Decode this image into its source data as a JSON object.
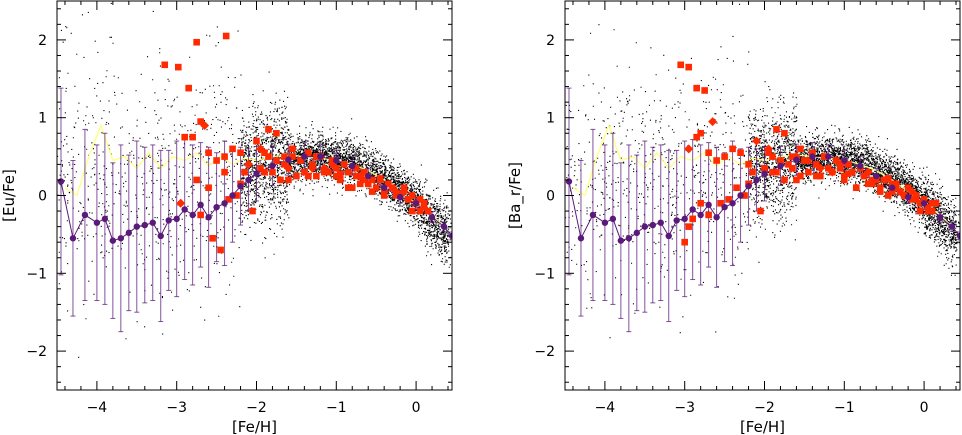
{
  "chart_data": [
    {
      "type": "scatter",
      "xlabel": "[Fe/H]",
      "ylabel": "[Eu/Fe]",
      "xlim": [
        -4.5,
        0.45
      ],
      "ylim": [
        -2.5,
        2.5
      ],
      "xticks": [
        -4,
        -3,
        -2,
        -1,
        0
      ],
      "yticks": [
        -2,
        -1,
        0,
        1,
        2
      ],
      "grid": false,
      "legend": "none",
      "model_cloud": {
        "note_color": "#000000",
        "n_points": 5200,
        "ridge": [
          [
            -4.5,
            0.2
          ],
          [
            -3.0,
            0.25
          ],
          [
            -2.0,
            0.4
          ],
          [
            -1.3,
            0.5
          ],
          [
            -0.8,
            0.45
          ],
          [
            -0.3,
            0.15
          ],
          [
            0.0,
            -0.1
          ],
          [
            0.35,
            -0.45
          ]
        ]
      },
      "mean_curve": {
        "color": "#5a1a7a",
        "x": [
          -4.45,
          -4.3,
          -4.15,
          -4.0,
          -3.9,
          -3.8,
          -3.7,
          -3.6,
          -3.5,
          -3.4,
          -3.3,
          -3.2,
          -3.1,
          -3.0,
          -2.9,
          -2.8,
          -2.7,
          -2.6,
          -2.5,
          -2.4,
          -2.3,
          -2.2,
          -2.1,
          -2.0,
          -1.8,
          -1.6,
          -1.4,
          -1.2,
          -1.0,
          -0.8,
          -0.6,
          -0.4,
          -0.2,
          0.0,
          0.2,
          0.35,
          0.45
        ],
        "y": [
          0.18,
          -0.55,
          -0.25,
          -0.35,
          -0.3,
          -0.58,
          -0.55,
          -0.48,
          -0.4,
          -0.38,
          -0.35,
          -0.52,
          -0.32,
          -0.3,
          -0.18,
          -0.25,
          -0.12,
          -0.28,
          -0.15,
          -0.1,
          0.0,
          0.12,
          0.2,
          0.28,
          0.38,
          0.46,
          0.5,
          0.5,
          0.45,
          0.38,
          0.25,
          0.1,
          -0.02,
          -0.1,
          -0.28,
          -0.4,
          -0.52
        ],
        "err": [
          1.2,
          1.0,
          1.1,
          1.0,
          1.1,
          1.0,
          1.2,
          1.0,
          1.1,
          1.0,
          1.0,
          1.1,
          0.9,
          1.0,
          0.9,
          0.9,
          0.8,
          0.9,
          0.7,
          0.8,
          0.6,
          0.5,
          0.4,
          0.35,
          0.25,
          0.2,
          0.18,
          0.15,
          0.13,
          0.12,
          0.1,
          0.08,
          0.08,
          0.08,
          0.07,
          0.06,
          0.05
        ]
      },
      "median_curve": {
        "color": "#ffff80",
        "x": [
          -4.4,
          -4.25,
          -4.1,
          -3.95,
          -3.8,
          -3.65,
          -3.5,
          -3.35,
          -3.2,
          -3.05,
          -2.9,
          -2.75,
          -2.6,
          -2.45,
          -2.3,
          -2.15,
          -2.0,
          -1.8,
          -1.6,
          -1.4,
          -1.2,
          -1.0,
          -0.8,
          -0.6,
          -0.4,
          -0.2,
          0.0,
          0.2,
          0.35
        ],
        "y": [
          0.1,
          0.0,
          0.5,
          0.9,
          0.45,
          0.5,
          0.35,
          0.55,
          0.35,
          0.5,
          0.45,
          0.55,
          0.38,
          0.5,
          0.4,
          0.48,
          0.45,
          0.5,
          0.52,
          0.5,
          0.48,
          0.45,
          0.4,
          0.32,
          0.2,
          0.05,
          -0.1,
          -0.25,
          -0.4
        ]
      },
      "observations": {
        "color": "#ff2a00",
        "x": [
          -3.15,
          -2.98,
          -2.85,
          -2.75,
          -2.65,
          -2.38,
          -2.8,
          -2.7,
          -2.6,
          -2.5,
          -2.4,
          -2.3,
          -2.2,
          -2.1,
          -2.0,
          -1.95,
          -1.9,
          -1.85,
          -1.8,
          -1.75,
          -1.7,
          -1.65,
          -1.6,
          -1.55,
          -1.5,
          -1.45,
          -1.4,
          -1.35,
          -1.3,
          -1.25,
          -1.2,
          -1.15,
          -1.1,
          -1.05,
          -1.0,
          -0.95,
          -0.9,
          -0.85,
          -0.8,
          -0.75,
          -0.7,
          -0.65,
          -0.6,
          -0.55,
          -0.5,
          -0.45,
          -0.4,
          -0.35,
          -0.3,
          -0.25,
          -0.2,
          -0.15,
          -0.1,
          -0.05,
          0.0,
          0.05,
          0.1,
          0.15,
          -2.95,
          -2.9,
          -2.7,
          -2.55,
          -2.45,
          -2.35,
          -2.25,
          -2.15,
          -2.05,
          -1.95,
          -1.85,
          -1.75,
          -1.65,
          -1.55,
          -1.45,
          -1.35,
          -1.25,
          -1.15,
          -1.05,
          -0.95,
          -0.85,
          -0.75,
          -0.65,
          -0.55,
          -0.45,
          -0.35,
          -0.25,
          -0.15,
          -0.05,
          0.05,
          -2.4,
          -2.6,
          -2.75,
          -2.2,
          -1.9,
          -1.6,
          -1.3,
          -1.0,
          -0.7,
          -0.4,
          -0.1,
          0.1
        ],
        "y": [
          1.68,
          1.65,
          1.38,
          1.97,
          0.9,
          2.05,
          0.75,
          0.95,
          0.55,
          0.45,
          0.5,
          0.6,
          0.55,
          0.4,
          0.7,
          0.35,
          0.55,
          0.5,
          0.3,
          0.45,
          0.2,
          0.4,
          0.35,
          0.5,
          0.25,
          0.45,
          0.3,
          0.55,
          0.4,
          0.25,
          0.5,
          0.35,
          0.3,
          0.45,
          0.35,
          0.2,
          0.4,
          0.3,
          0.1,
          0.35,
          0.25,
          0.3,
          0.15,
          0.2,
          0.1,
          0.2,
          0.0,
          0.15,
          0.1,
          0.05,
          0.0,
          0.1,
          -0.05,
          0.0,
          -0.1,
          -0.05,
          -0.15,
          -0.2,
          -0.1,
          0.75,
          -0.25,
          -0.55,
          -0.7,
          -0.05,
          0.0,
          0.3,
          -0.2,
          0.6,
          0.85,
          0.8,
          0.5,
          0.6,
          0.45,
          0.25,
          0.5,
          0.3,
          0.4,
          0.28,
          0.1,
          0.25,
          0.2,
          0.05,
          0.22,
          0.15,
          0.0,
          0.05,
          -0.2,
          -0.2,
          0.3,
          0.1,
          0.2,
          0.15,
          0.3,
          0.2,
          0.35,
          0.25,
          0.15,
          0.05,
          -0.05,
          -0.1
        ]
      }
    },
    {
      "type": "scatter",
      "xlabel": "[Fe/H]",
      "ylabel": "[Ba_r/Fe]",
      "xlim": [
        -4.5,
        0.45
      ],
      "ylim": [
        -2.5,
        2.5
      ],
      "xticks": [
        -4,
        -3,
        -2,
        -1,
        0
      ],
      "yticks": [
        -2,
        -1,
        0,
        1,
        2
      ],
      "grid": false,
      "legend": "none",
      "model_cloud": {
        "note_color": "#000000",
        "n_points": 5200,
        "ridge": [
          [
            -4.5,
            0.2
          ],
          [
            -3.0,
            0.25
          ],
          [
            -2.0,
            0.4
          ],
          [
            -1.3,
            0.5
          ],
          [
            -0.8,
            0.45
          ],
          [
            -0.3,
            0.15
          ],
          [
            0.0,
            -0.1
          ],
          [
            0.35,
            -0.45
          ]
        ]
      },
      "mean_curve": {
        "color": "#5a1a7a",
        "x": [
          -4.45,
          -4.3,
          -4.15,
          -4.0,
          -3.9,
          -3.8,
          -3.7,
          -3.6,
          -3.5,
          -3.4,
          -3.3,
          -3.2,
          -3.1,
          -3.0,
          -2.9,
          -2.8,
          -2.7,
          -2.6,
          -2.5,
          -2.4,
          -2.3,
          -2.2,
          -2.1,
          -2.0,
          -1.8,
          -1.6,
          -1.4,
          -1.2,
          -1.0,
          -0.8,
          -0.6,
          -0.4,
          -0.2,
          0.0,
          0.2,
          0.35,
          0.45
        ],
        "y": [
          0.18,
          -0.55,
          -0.25,
          -0.35,
          -0.3,
          -0.58,
          -0.55,
          -0.48,
          -0.4,
          -0.38,
          -0.35,
          -0.52,
          -0.32,
          -0.3,
          -0.18,
          -0.25,
          -0.12,
          -0.28,
          -0.15,
          -0.1,
          0.0,
          0.12,
          0.2,
          0.28,
          0.38,
          0.46,
          0.5,
          0.5,
          0.45,
          0.38,
          0.25,
          0.1,
          -0.02,
          -0.1,
          -0.28,
          -0.4,
          -0.52
        ],
        "err": [
          1.2,
          1.0,
          1.1,
          1.0,
          1.1,
          1.0,
          1.2,
          1.0,
          1.1,
          1.0,
          1.0,
          1.1,
          0.9,
          1.0,
          0.9,
          0.9,
          0.8,
          0.9,
          0.7,
          0.8,
          0.6,
          0.5,
          0.4,
          0.35,
          0.25,
          0.2,
          0.18,
          0.15,
          0.13,
          0.12,
          0.1,
          0.08,
          0.08,
          0.08,
          0.07,
          0.06,
          0.05
        ]
      },
      "median_curve": {
        "color": "#ffff80",
        "x": [
          -4.4,
          -4.25,
          -4.1,
          -3.95,
          -3.8,
          -3.65,
          -3.5,
          -3.35,
          -3.2,
          -3.05,
          -2.9,
          -2.75,
          -2.6,
          -2.45,
          -2.3,
          -2.15,
          -2.0,
          -1.8,
          -1.6,
          -1.4,
          -1.2,
          -1.0,
          -0.8,
          -0.6,
          -0.4,
          -0.2,
          0.0,
          0.2,
          0.35
        ],
        "y": [
          0.1,
          0.0,
          0.5,
          0.9,
          0.45,
          0.5,
          0.35,
          0.55,
          0.35,
          0.5,
          0.45,
          0.55,
          0.38,
          0.5,
          0.4,
          0.48,
          0.45,
          0.5,
          0.52,
          0.5,
          0.48,
          0.45,
          0.4,
          0.32,
          0.2,
          0.05,
          -0.1,
          -0.25,
          -0.4
        ]
      },
      "observations": {
        "color": "#ff2a00",
        "x": [
          -3.05,
          -2.95,
          -2.85,
          -2.75,
          -2.65,
          -2.85,
          -2.8,
          -2.7,
          -2.6,
          -2.5,
          -2.4,
          -2.3,
          -2.2,
          -2.1,
          -2.0,
          -1.95,
          -1.9,
          -1.85,
          -1.8,
          -1.75,
          -1.7,
          -1.65,
          -1.6,
          -1.55,
          -1.5,
          -1.45,
          -1.4,
          -1.35,
          -1.3,
          -1.25,
          -1.2,
          -1.15,
          -1.1,
          -1.05,
          -1.0,
          -0.95,
          -0.9,
          -0.85,
          -0.8,
          -0.75,
          -0.7,
          -0.65,
          -0.6,
          -0.55,
          -0.5,
          -0.45,
          -0.4,
          -0.35,
          -0.3,
          -0.25,
          -0.2,
          -0.15,
          -0.1,
          -0.05,
          0.0,
          0.05,
          0.1,
          0.15,
          -2.95,
          -2.9,
          -2.7,
          -2.55,
          -2.45,
          -2.35,
          -2.25,
          -2.15,
          -2.05,
          -1.95,
          -1.85,
          -1.75,
          -1.65,
          -1.55,
          -1.45,
          -1.35,
          -1.25,
          -1.15,
          -1.05,
          -0.95,
          -0.85,
          -0.75,
          -0.65,
          -0.55,
          -0.45,
          -0.35,
          -0.25,
          -0.15,
          -0.05,
          0.05,
          -3.0,
          -2.95,
          -2.8,
          -2.2,
          -1.9,
          -1.6,
          -1.3,
          -1.0,
          -0.7,
          -0.4,
          -0.1,
          0.1
        ],
        "y": [
          1.68,
          1.65,
          1.38,
          1.35,
          0.95,
          0.75,
          0.8,
          0.55,
          0.45,
          0.5,
          0.6,
          0.55,
          0.4,
          0.7,
          0.35,
          0.55,
          0.5,
          0.3,
          0.45,
          0.2,
          0.4,
          0.35,
          0.5,
          0.25,
          0.45,
          0.3,
          0.55,
          0.4,
          0.25,
          0.5,
          0.35,
          0.3,
          0.45,
          0.35,
          0.2,
          0.4,
          0.3,
          0.1,
          0.35,
          0.25,
          0.3,
          0.15,
          0.2,
          0.1,
          0.2,
          0.0,
          0.15,
          0.1,
          0.05,
          0.0,
          0.1,
          -0.05,
          0.0,
          -0.1,
          -0.05,
          -0.15,
          -0.2,
          -0.1,
          0.6,
          -0.3,
          -0.25,
          -0.1,
          -0.05,
          0.1,
          0.0,
          0.3,
          -0.2,
          0.6,
          0.85,
          0.8,
          0.5,
          0.6,
          0.45,
          0.25,
          0.5,
          0.3,
          0.4,
          0.28,
          0.1,
          0.25,
          0.2,
          0.05,
          0.22,
          0.15,
          0.0,
          0.05,
          -0.2,
          -0.2,
          -0.6,
          -0.4,
          -0.1,
          0.15,
          0.3,
          0.2,
          0.35,
          0.25,
          0.15,
          0.05,
          -0.05,
          -0.1
        ]
      }
    }
  ]
}
